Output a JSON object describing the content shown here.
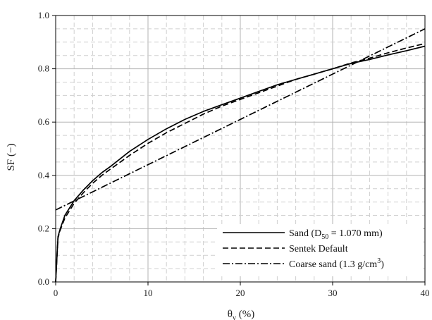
{
  "chart_data": {
    "type": "line",
    "xlabel": "θv (%)",
    "xlabel_parts": {
      "symbol": "θ",
      "sub": "v",
      "rest": " (%)"
    },
    "ylabel": "SF (−)",
    "xlim": [
      0,
      40
    ],
    "ylim": [
      0.0,
      1.0
    ],
    "xticks": [
      0,
      10,
      20,
      30,
      40
    ],
    "yticks": [
      0.0,
      0.2,
      0.4,
      0.6,
      0.8,
      1.0
    ],
    "ytick_labels": [
      "0.0",
      "0.2",
      "0.4",
      "0.6",
      "0.8",
      "1.0"
    ],
    "grid": true,
    "legend_position": "bottom-right",
    "series": [
      {
        "name": "Sand (D50 = 1.070 mm)",
        "legend_parts": {
          "pre": "Sand (D",
          "sub": "50",
          "post": " = 1.070 mm)"
        },
        "style": "solid",
        "x": [
          0,
          0.25,
          0.5,
          1,
          2,
          3,
          4,
          5,
          6,
          8,
          10,
          12,
          14,
          16,
          18,
          20,
          22,
          24,
          26,
          28,
          30,
          32,
          34,
          36,
          38,
          40
        ],
        "y": [
          0.0,
          0.17,
          0.2,
          0.25,
          0.305,
          0.345,
          0.38,
          0.41,
          0.435,
          0.49,
          0.535,
          0.575,
          0.61,
          0.64,
          0.665,
          0.69,
          0.715,
          0.74,
          0.76,
          0.78,
          0.8,
          0.82,
          0.835,
          0.852,
          0.868,
          0.885
        ]
      },
      {
        "name": "Sentek Default",
        "style": "dashed",
        "x": [
          0,
          0.25,
          0.5,
          1,
          2,
          3,
          4,
          5,
          6,
          8,
          10,
          12,
          14,
          16,
          18,
          20,
          22,
          24,
          26,
          28,
          30,
          32,
          34,
          36,
          38,
          40
        ],
        "y": [
          0.0,
          0.165,
          0.195,
          0.24,
          0.295,
          0.335,
          0.37,
          0.4,
          0.425,
          0.475,
          0.52,
          0.56,
          0.595,
          0.63,
          0.66,
          0.685,
          0.71,
          0.735,
          0.76,
          0.78,
          0.8,
          0.822,
          0.84,
          0.86,
          0.878,
          0.895
        ]
      },
      {
        "name": "Coarse sand (1.3 g/cm3)",
        "legend_parts": {
          "pre": "Coarse sand (1.3 g/cm",
          "sup": "3",
          "post": ")"
        },
        "style": "dashdot",
        "x": [
          0,
          40
        ],
        "y": [
          0.27,
          0.95
        ]
      }
    ]
  }
}
